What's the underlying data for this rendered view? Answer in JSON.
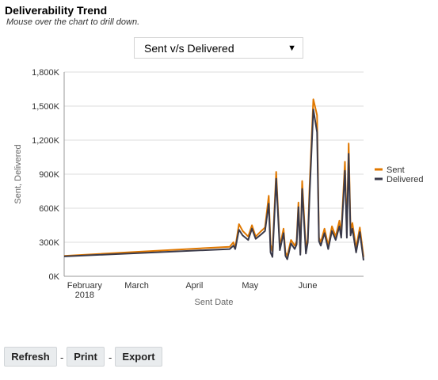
{
  "header": {
    "title": "Deliverability Trend",
    "subtitle": "Mouse over the chart to drill down."
  },
  "selector": {
    "value": "Sent v/s Delivered"
  },
  "toolbar": {
    "refresh_label": "Refresh",
    "print_label": "Print",
    "export_label": "Export",
    "separator": "-"
  },
  "colors": {
    "sent": "#e07800",
    "delivered": "#3a3a4a",
    "grid": "#dddddd",
    "axis": "#999999"
  },
  "chart_data": {
    "type": "line",
    "xlabel": "Sent Date",
    "ylabel": "Sent, Delivered",
    "ylim": [
      0,
      1800000
    ],
    "yticks": [
      {
        "value": 0,
        "label": "0K"
      },
      {
        "value": 300000,
        "label": "300K"
      },
      {
        "value": 600000,
        "label": "600K"
      },
      {
        "value": 900000,
        "label": "900K"
      },
      {
        "value": 1200000,
        "label": "1,200K"
      },
      {
        "value": 1500000,
        "label": "1,500K"
      },
      {
        "value": 1800000,
        "label": "1,800K"
      }
    ],
    "xlim": [
      "2018-01-21",
      "2018-07-01"
    ],
    "xticks": [
      {
        "date": "2018-02-01",
        "label": "February",
        "sublabel": "2018"
      },
      {
        "date": "2018-03-01",
        "label": "March",
        "sublabel": ""
      },
      {
        "date": "2018-04-01",
        "label": "April",
        "sublabel": ""
      },
      {
        "date": "2018-05-01",
        "label": "May",
        "sublabel": ""
      },
      {
        "date": "2018-06-01",
        "label": "June",
        "sublabel": ""
      }
    ],
    "grid": true,
    "legend": "right",
    "series": [
      {
        "name": "Sent",
        "points": [
          [
            "2018-01-21",
            180000
          ],
          [
            "2018-04-20",
            260000
          ],
          [
            "2018-04-22",
            300000
          ],
          [
            "2018-04-23",
            250000
          ],
          [
            "2018-04-25",
            460000
          ],
          [
            "2018-04-27",
            400000
          ],
          [
            "2018-04-30",
            350000
          ],
          [
            "2018-05-02",
            450000
          ],
          [
            "2018-05-04",
            350000
          ],
          [
            "2018-05-07",
            400000
          ],
          [
            "2018-05-09",
            430000
          ],
          [
            "2018-05-11",
            710000
          ],
          [
            "2018-05-12",
            280000
          ],
          [
            "2018-05-13",
            220000
          ],
          [
            "2018-05-15",
            920000
          ],
          [
            "2018-05-17",
            260000
          ],
          [
            "2018-05-19",
            420000
          ],
          [
            "2018-05-20",
            210000
          ],
          [
            "2018-05-21",
            180000
          ],
          [
            "2018-05-23",
            320000
          ],
          [
            "2018-05-25",
            270000
          ],
          [
            "2018-05-26",
            310000
          ],
          [
            "2018-05-27",
            650000
          ],
          [
            "2018-05-28",
            210000
          ],
          [
            "2018-05-29",
            840000
          ],
          [
            "2018-05-31",
            240000
          ],
          [
            "2018-06-01",
            330000
          ],
          [
            "2018-06-02",
            800000
          ],
          [
            "2018-06-04",
            1560000
          ],
          [
            "2018-06-06",
            1420000
          ],
          [
            "2018-06-07",
            340000
          ],
          [
            "2018-06-08",
            300000
          ],
          [
            "2018-06-10",
            420000
          ],
          [
            "2018-06-12",
            270000
          ],
          [
            "2018-06-14",
            440000
          ],
          [
            "2018-06-16",
            350000
          ],
          [
            "2018-06-18",
            490000
          ],
          [
            "2018-06-19",
            380000
          ],
          [
            "2018-06-21",
            1010000
          ],
          [
            "2018-06-22",
            380000
          ],
          [
            "2018-06-23",
            1170000
          ],
          [
            "2018-06-24",
            400000
          ],
          [
            "2018-06-25",
            470000
          ],
          [
            "2018-06-27",
            250000
          ],
          [
            "2018-06-29",
            430000
          ],
          [
            "2018-07-01",
            170000
          ]
        ]
      },
      {
        "name": "Delivered",
        "points": [
          [
            "2018-01-21",
            175000
          ],
          [
            "2018-04-20",
            240000
          ],
          [
            "2018-04-22",
            270000
          ],
          [
            "2018-04-23",
            240000
          ],
          [
            "2018-04-25",
            410000
          ],
          [
            "2018-04-27",
            360000
          ],
          [
            "2018-04-30",
            320000
          ],
          [
            "2018-05-02",
            420000
          ],
          [
            "2018-05-04",
            330000
          ],
          [
            "2018-05-07",
            370000
          ],
          [
            "2018-05-09",
            400000
          ],
          [
            "2018-05-11",
            640000
          ],
          [
            "2018-05-12",
            210000
          ],
          [
            "2018-05-13",
            170000
          ],
          [
            "2018-05-15",
            860000
          ],
          [
            "2018-05-17",
            230000
          ],
          [
            "2018-05-19",
            380000
          ],
          [
            "2018-05-20",
            180000
          ],
          [
            "2018-05-21",
            150000
          ],
          [
            "2018-05-23",
            290000
          ],
          [
            "2018-05-25",
            240000
          ],
          [
            "2018-05-26",
            280000
          ],
          [
            "2018-05-27",
            610000
          ],
          [
            "2018-05-28",
            190000
          ],
          [
            "2018-05-29",
            770000
          ],
          [
            "2018-05-31",
            200000
          ],
          [
            "2018-06-01",
            300000
          ],
          [
            "2018-06-02",
            720000
          ],
          [
            "2018-06-04",
            1470000
          ],
          [
            "2018-06-06",
            1270000
          ],
          [
            "2018-06-07",
            310000
          ],
          [
            "2018-06-08",
            270000
          ],
          [
            "2018-06-10",
            380000
          ],
          [
            "2018-06-12",
            240000
          ],
          [
            "2018-06-14",
            400000
          ],
          [
            "2018-06-16",
            320000
          ],
          [
            "2018-06-18",
            440000
          ],
          [
            "2018-06-19",
            340000
          ],
          [
            "2018-06-21",
            930000
          ],
          [
            "2018-06-22",
            340000
          ],
          [
            "2018-06-23",
            1080000
          ],
          [
            "2018-06-24",
            360000
          ],
          [
            "2018-06-25",
            420000
          ],
          [
            "2018-06-27",
            210000
          ],
          [
            "2018-06-29",
            390000
          ],
          [
            "2018-07-01",
            140000
          ]
        ]
      }
    ]
  }
}
